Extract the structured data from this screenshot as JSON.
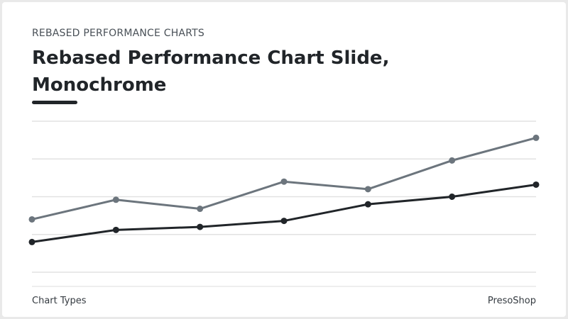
{
  "header": {
    "eyebrow": "REBASED PERFORMANCE CHARTS",
    "title": "Rebased Performance Chart Slide, Monochrome"
  },
  "footer": {
    "left": "Chart Types",
    "right": "PresoShop"
  },
  "chart_data": {
    "type": "line",
    "categories": [
      null,
      null,
      null,
      null,
      null,
      null,
      null
    ],
    "series": [
      {
        "color": "#6c757d",
        "values": [
          35,
          48,
          42,
          60,
          55,
          74,
          89
        ]
      },
      {
        "color": "#212529",
        "values": [
          20,
          28,
          30,
          34,
          45,
          50,
          58
        ]
      }
    ],
    "ylim": [
      0,
      100
    ],
    "yticks": [
      0,
      25,
      50,
      75,
      100
    ],
    "grid": true
  }
}
